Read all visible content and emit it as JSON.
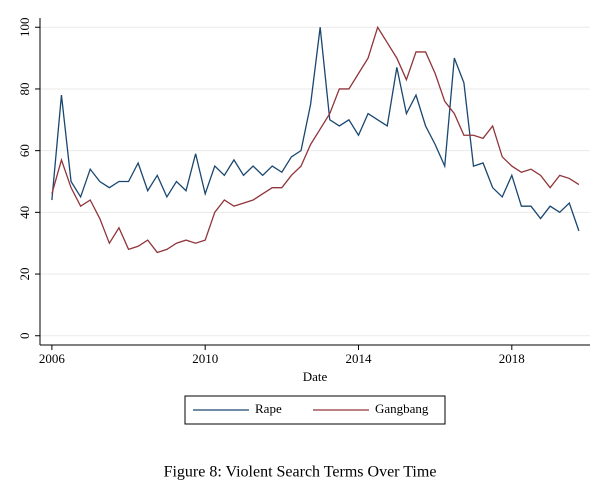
{
  "chart_data": {
    "type": "line",
    "caption": "Figure 8: Violent Search Terms Over Time",
    "xlabel": "Date",
    "x": [
      2006,
      2006.25,
      2006.5,
      2006.75,
      2007,
      2007.25,
      2007.5,
      2007.75,
      2008,
      2008.25,
      2008.5,
      2008.75,
      2009,
      2009.25,
      2009.5,
      2009.75,
      2010,
      2010.25,
      2010.5,
      2010.75,
      2011,
      2011.25,
      2011.5,
      2011.75,
      2012,
      2012.25,
      2012.5,
      2012.75,
      2013,
      2013.25,
      2013.5,
      2013.75,
      2014,
      2014.25,
      2014.5,
      2014.75,
      2015,
      2015.25,
      2015.5,
      2015.75,
      2016,
      2016.25,
      2016.5,
      2016.75,
      2017,
      2017.25,
      2017.5,
      2017.75,
      2018,
      2018.25,
      2018.5,
      2018.75,
      2019,
      2019.25,
      2019.5,
      2019.75
    ],
    "series": [
      {
        "name": "Rape",
        "color": "#1a476f",
        "values": [
          44,
          78,
          50,
          45,
          54,
          50,
          48,
          50,
          50,
          56,
          47,
          52,
          45,
          50,
          47,
          59,
          46,
          55,
          52,
          57,
          52,
          55,
          52,
          55,
          53,
          58,
          60,
          75,
          100,
          70,
          68,
          70,
          65,
          72,
          70,
          68,
          87,
          72,
          78,
          68,
          62,
          55,
          90,
          82,
          55,
          56,
          48,
          45,
          52,
          42,
          42,
          38,
          42,
          40,
          43,
          34
        ]
      },
      {
        "name": "Gangbang",
        "color": "#90353b",
        "values": [
          46,
          57,
          48,
          42,
          44,
          38,
          30,
          35,
          28,
          29,
          31,
          27,
          28,
          30,
          31,
          30,
          31,
          40,
          44,
          42,
          43,
          44,
          46,
          48,
          48,
          52,
          55,
          62,
          67,
          72,
          80,
          80,
          85,
          90,
          100,
          95,
          90,
          83,
          92,
          92,
          85,
          76,
          72,
          65,
          65,
          64,
          68,
          58,
          55,
          53,
          54,
          52,
          48,
          52,
          51,
          49
        ]
      }
    ],
    "xlim": [
      2005.69,
      2020.04
    ],
    "xticks": [
      2006,
      2010,
      2014,
      2018
    ],
    "ylim": [
      -3,
      103
    ],
    "yticks": [
      0,
      20,
      40,
      60,
      80,
      100
    ],
    "grid": true,
    "legend": "bottom"
  }
}
